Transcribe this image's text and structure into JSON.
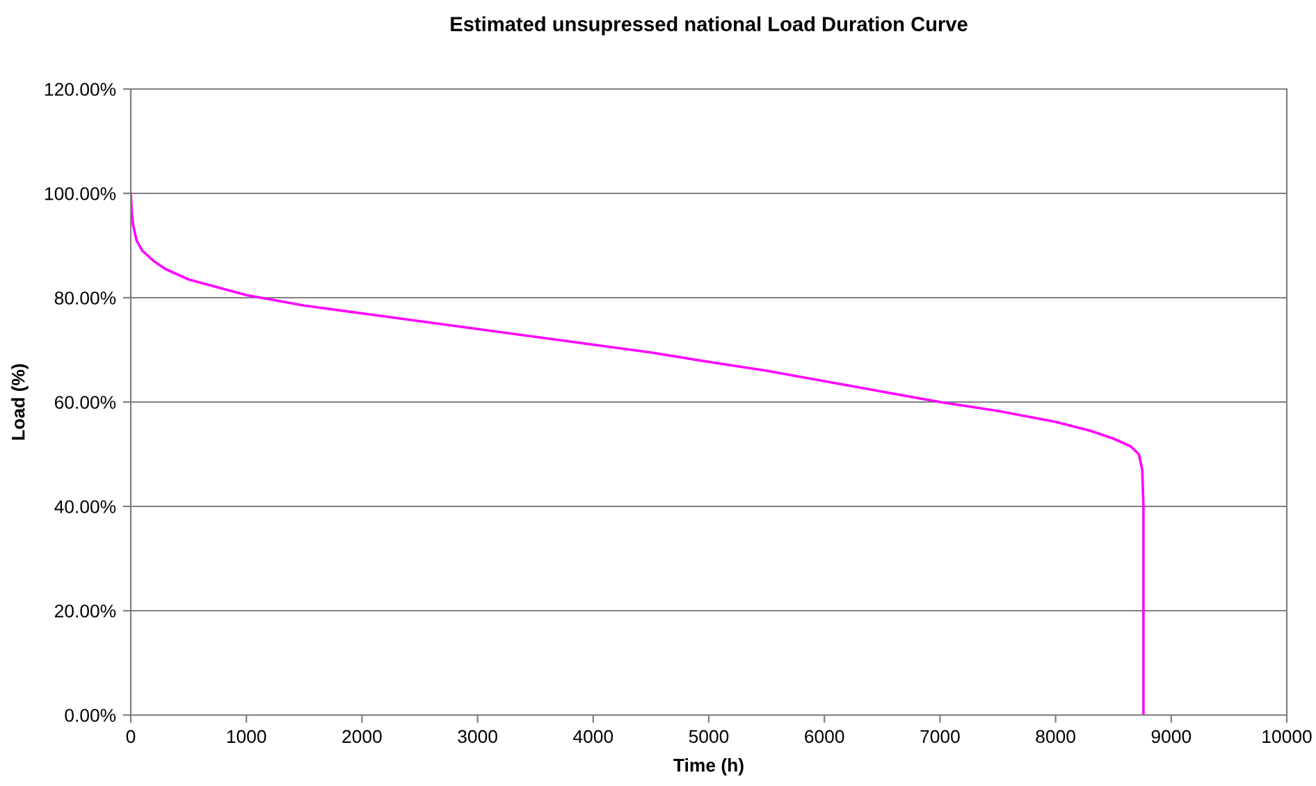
{
  "chart_data": {
    "type": "line",
    "title": "Estimated unsupressed national Load Duration Curve",
    "xlabel": "Time (h)",
    "ylabel": "Load (%)",
    "series": [
      {
        "color": "#ff00ff",
        "x": [
          0,
          10,
          20,
          50,
          100,
          200,
          300,
          500,
          750,
          1000,
          1500,
          2000,
          2500,
          3000,
          3500,
          4000,
          4500,
          5000,
          5500,
          6000,
          6500,
          7000,
          7500,
          8000,
          8300,
          8500,
          8650,
          8720,
          8750,
          8760,
          8760
        ],
        "values": [
          100,
          96,
          94,
          91,
          89,
          87,
          85.5,
          83.5,
          82,
          80.5,
          78.5,
          77,
          75.5,
          74,
          72.5,
          71,
          69.5,
          67.7,
          66,
          64,
          62,
          60,
          58.3,
          56.2,
          54.5,
          53,
          51.5,
          50,
          47,
          40,
          0
        ]
      }
    ],
    "xlim": [
      0,
      10000
    ],
    "xticks": [
      0,
      1000,
      2000,
      3000,
      4000,
      5000,
      6000,
      7000,
      8000,
      9000,
      10000
    ],
    "ylim": [
      0,
      120
    ],
    "yticks": [
      {
        "value": 0,
        "label": "0.00%"
      },
      {
        "value": 20,
        "label": "20.00%"
      },
      {
        "value": 40,
        "label": "40.00%"
      },
      {
        "value": 60,
        "label": "60.00%"
      },
      {
        "value": 80,
        "label": "80.00%"
      },
      {
        "value": 100,
        "label": "100.00%"
      },
      {
        "value": 120,
        "label": "120.00%"
      }
    ],
    "grid": "y"
  }
}
